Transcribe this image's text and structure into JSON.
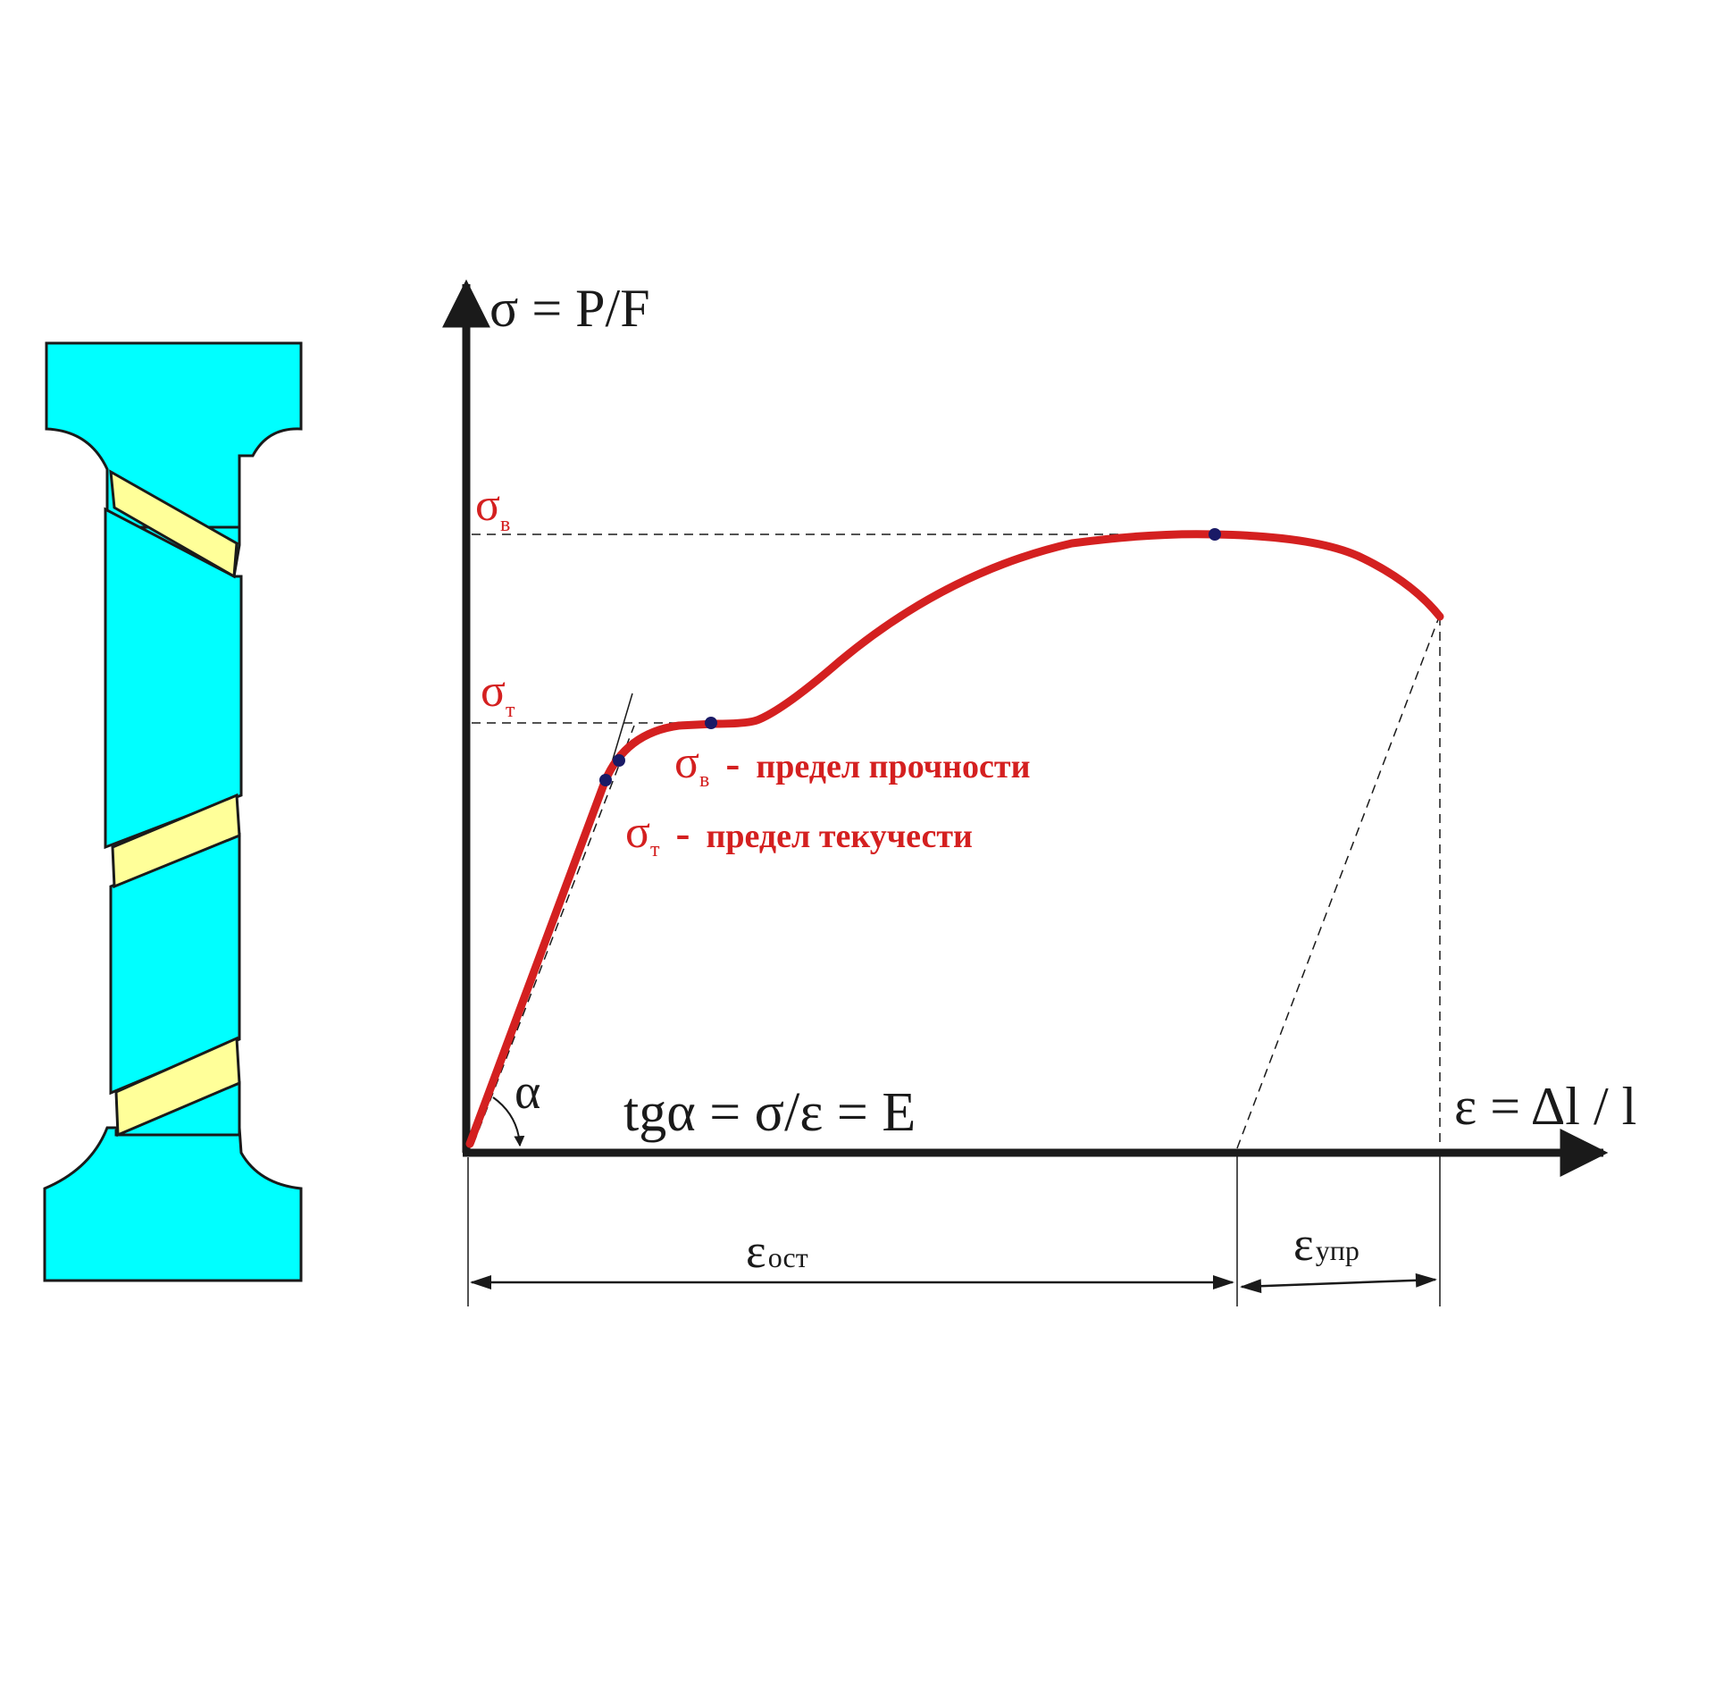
{
  "colors": {
    "specimen_body": "#00ffff",
    "shear_band": "#ffff99",
    "curve": "#d42020",
    "marker": "#1a1a66",
    "axis": "#1a1a1a",
    "label_red": "#d42020"
  },
  "axes": {
    "y_label": "σ = P/F",
    "x_label": "ε = Δl / l",
    "angle_symbol": "α"
  },
  "labels": {
    "sigma_v": {
      "sym": "σ",
      "sub": "в"
    },
    "sigma_t": {
      "sym": "σ",
      "sub": "т"
    },
    "modulus_formula": "tgα =  σ/ε = E"
  },
  "legend": {
    "items": [
      {
        "sym": "σ",
        "sub": "в",
        "dash": "-",
        "text": "предел прочности"
      },
      {
        "sym": "σ",
        "sub": "т",
        "dash": "-",
        "text": "предел текучести"
      }
    ]
  },
  "strain_parts": {
    "residual": {
      "sym": "ε",
      "sub": "ост"
    },
    "elastic": {
      "sym": "ε",
      "sub": "упр"
    }
  }
}
